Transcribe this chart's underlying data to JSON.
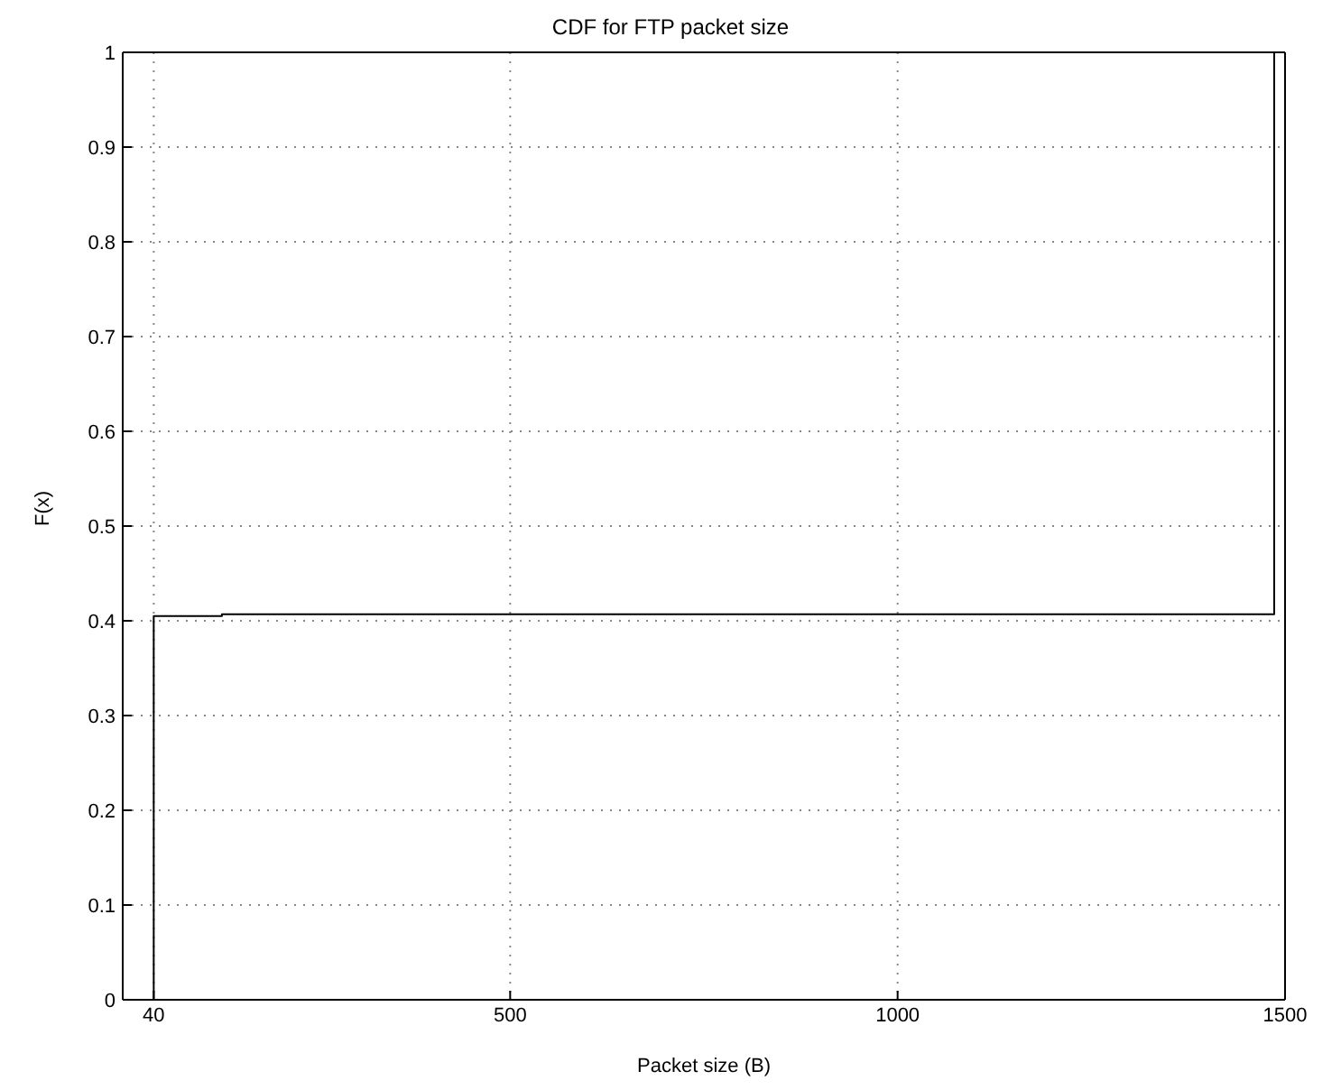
{
  "chart_data": {
    "type": "step",
    "title": "CDF for FTP packet size",
    "xlabel": "Packet size (B)",
    "ylabel": "F(x)",
    "x": [
      40,
      40,
      128,
      1486,
      1486
    ],
    "series": [
      {
        "color": "#000000",
        "values": [
          0,
          0.405,
          0.407,
          0.407,
          1
        ]
      }
    ],
    "xlim": [
      0,
      1500
    ],
    "xticks": [
      40,
      500,
      1000,
      1500
    ],
    "ylim": [
      0,
      1
    ],
    "yticks": [
      0,
      0.1,
      0.2,
      0.3,
      0.4,
      0.5,
      0.6,
      0.7,
      0.8,
      0.9,
      1
    ],
    "grid": true,
    "line_style": "solid",
    "marker": "none",
    "legend": false
  }
}
